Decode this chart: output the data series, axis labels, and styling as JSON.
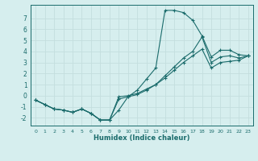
{
  "xlabel": "Humidex (Indice chaleur)",
  "bg_color": "#d6eeee",
  "grid_color": "#c4dede",
  "line_color": "#1a6b6b",
  "xlim": [
    -0.5,
    23.5
  ],
  "ylim": [
    -2.7,
    8.2
  ],
  "xticks": [
    0,
    1,
    2,
    3,
    4,
    5,
    6,
    7,
    8,
    9,
    10,
    11,
    12,
    13,
    14,
    15,
    16,
    17,
    18,
    19,
    20,
    21,
    22,
    23
  ],
  "yticks": [
    -2,
    -1,
    0,
    1,
    2,
    3,
    4,
    5,
    6,
    7
  ],
  "curves": [
    {
      "x": [
        0,
        1,
        2,
        3,
        4,
        5,
        6,
        7,
        8,
        9,
        10,
        11,
        12,
        13,
        14,
        15,
        16,
        17,
        18,
        19,
        20,
        21,
        22,
        23
      ],
      "y": [
        -0.4,
        -0.8,
        -1.2,
        -1.3,
        -1.5,
        -1.2,
        -1.6,
        -2.2,
        -2.2,
        -1.3,
        -0.1,
        0.5,
        1.5,
        2.5,
        7.7,
        7.7,
        7.5,
        6.8,
        5.4,
        3.5,
        4.1,
        4.1,
        3.7,
        3.6
      ]
    },
    {
      "x": [
        0,
        1,
        2,
        3,
        4,
        5,
        6,
        7,
        8,
        9,
        10,
        11,
        12,
        13,
        14,
        15,
        16,
        17,
        18,
        19,
        20,
        21,
        22,
        23
      ],
      "y": [
        -0.4,
        -0.8,
        -1.2,
        -1.3,
        -1.5,
        -1.2,
        -1.6,
        -2.2,
        -2.2,
        -0.3,
        -0.1,
        0.1,
        0.5,
        1.0,
        1.8,
        2.6,
        3.4,
        4.0,
        5.3,
        3.0,
        3.5,
        3.6,
        3.4,
        3.6
      ]
    },
    {
      "x": [
        0,
        1,
        2,
        3,
        4,
        5,
        6,
        7,
        8,
        9,
        10,
        11,
        12,
        13,
        14,
        15,
        16,
        17,
        18,
        19,
        20,
        21,
        22,
        23
      ],
      "y": [
        -0.4,
        -0.8,
        -1.2,
        -1.3,
        -1.5,
        -1.2,
        -1.6,
        -2.2,
        -2.2,
        -0.1,
        0.0,
        0.2,
        0.6,
        1.0,
        1.6,
        2.3,
        3.0,
        3.6,
        4.2,
        2.5,
        3.0,
        3.1,
        3.2,
        3.6
      ]
    }
  ]
}
